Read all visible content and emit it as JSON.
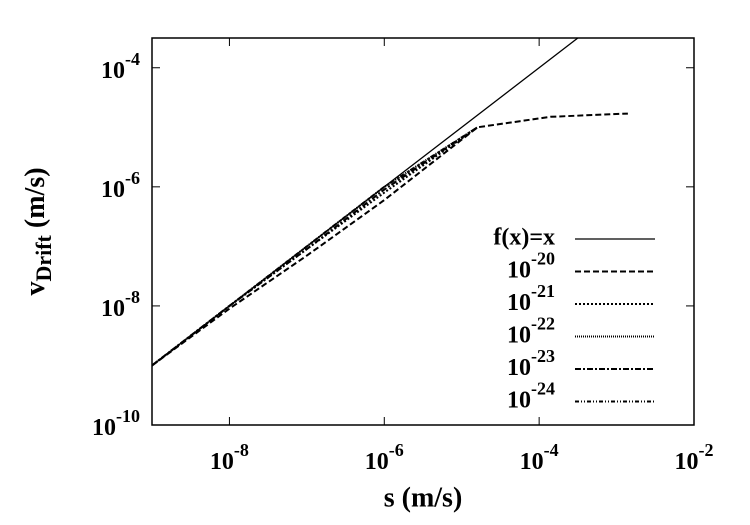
{
  "chart_data": {
    "type": "line",
    "log_x": true,
    "log_y": true,
    "x_label": "s (m/s)",
    "y_label": "vDrift (m/s)",
    "xlim": [
      1e-09,
      0.01
    ],
    "ylim": [
      1e-10,
      0.000316
    ],
    "xticks": [
      {
        "value": 1e-08,
        "label": "10-8"
      },
      {
        "value": 1e-06,
        "label": "10-6"
      },
      {
        "value": 0.0001,
        "label": "10-4"
      },
      {
        "value": 0.01,
        "label": "10-2"
      }
    ],
    "yticks": [
      {
        "value": 1e-10,
        "label": "10-10"
      },
      {
        "value": 1e-08,
        "label": "10-8"
      },
      {
        "value": 1e-06,
        "label": "10-6"
      },
      {
        "value": 0.0001,
        "label": "10-4"
      }
    ],
    "legend": "right",
    "series": [
      {
        "name": "f(x)=x",
        "color": "#000000",
        "dash": "none",
        "x": [
          1e-09,
          0.000316
        ],
        "values": [
          1e-09,
          0.000316
        ]
      },
      {
        "name": "10-20",
        "color": "#000000",
        "dash": "6,3",
        "x": [
          1e-09,
          1e-08,
          1e-07,
          1e-06,
          1.6e-05,
          0.00014,
          0.0014
        ],
        "values": [
          1e-09,
          9e-09,
          7e-08,
          6e-07,
          1e-05,
          1.5e-05,
          1.7e-05
        ]
      },
      {
        "name": "10-21",
        "color": "#000000",
        "dash": "2,2",
        "x": [
          1e-09,
          1e-08,
          1e-07,
          1e-06,
          1.6e-05
        ],
        "values": [
          1e-09,
          1e-08,
          9e-08,
          8e-07,
          1e-05
        ]
      },
      {
        "name": "10-22",
        "color": "#000000",
        "dash": "1,1",
        "x": [
          1e-09,
          1e-08,
          1e-07,
          1e-06,
          1.6e-05
        ],
        "values": [
          1e-09,
          1e-08,
          1e-07,
          1e-06,
          1e-05
        ]
      },
      {
        "name": "10-23",
        "color": "#000000",
        "dash": "6,2,2,2",
        "x": [
          1e-09,
          1e-08,
          1e-07,
          1e-06,
          1.6e-05
        ],
        "values": [
          1e-09,
          1e-08,
          9e-08,
          9e-07,
          1e-05
        ]
      },
      {
        "name": "10-24",
        "color": "#000000",
        "dash": "4,2,1,2,1,2",
        "x": [
          1e-09,
          1e-08,
          1e-07,
          1e-06,
          1.6e-05
        ],
        "values": [
          1e-09,
          1e-08,
          1e-07,
          1e-06,
          1e-05
        ]
      }
    ]
  }
}
